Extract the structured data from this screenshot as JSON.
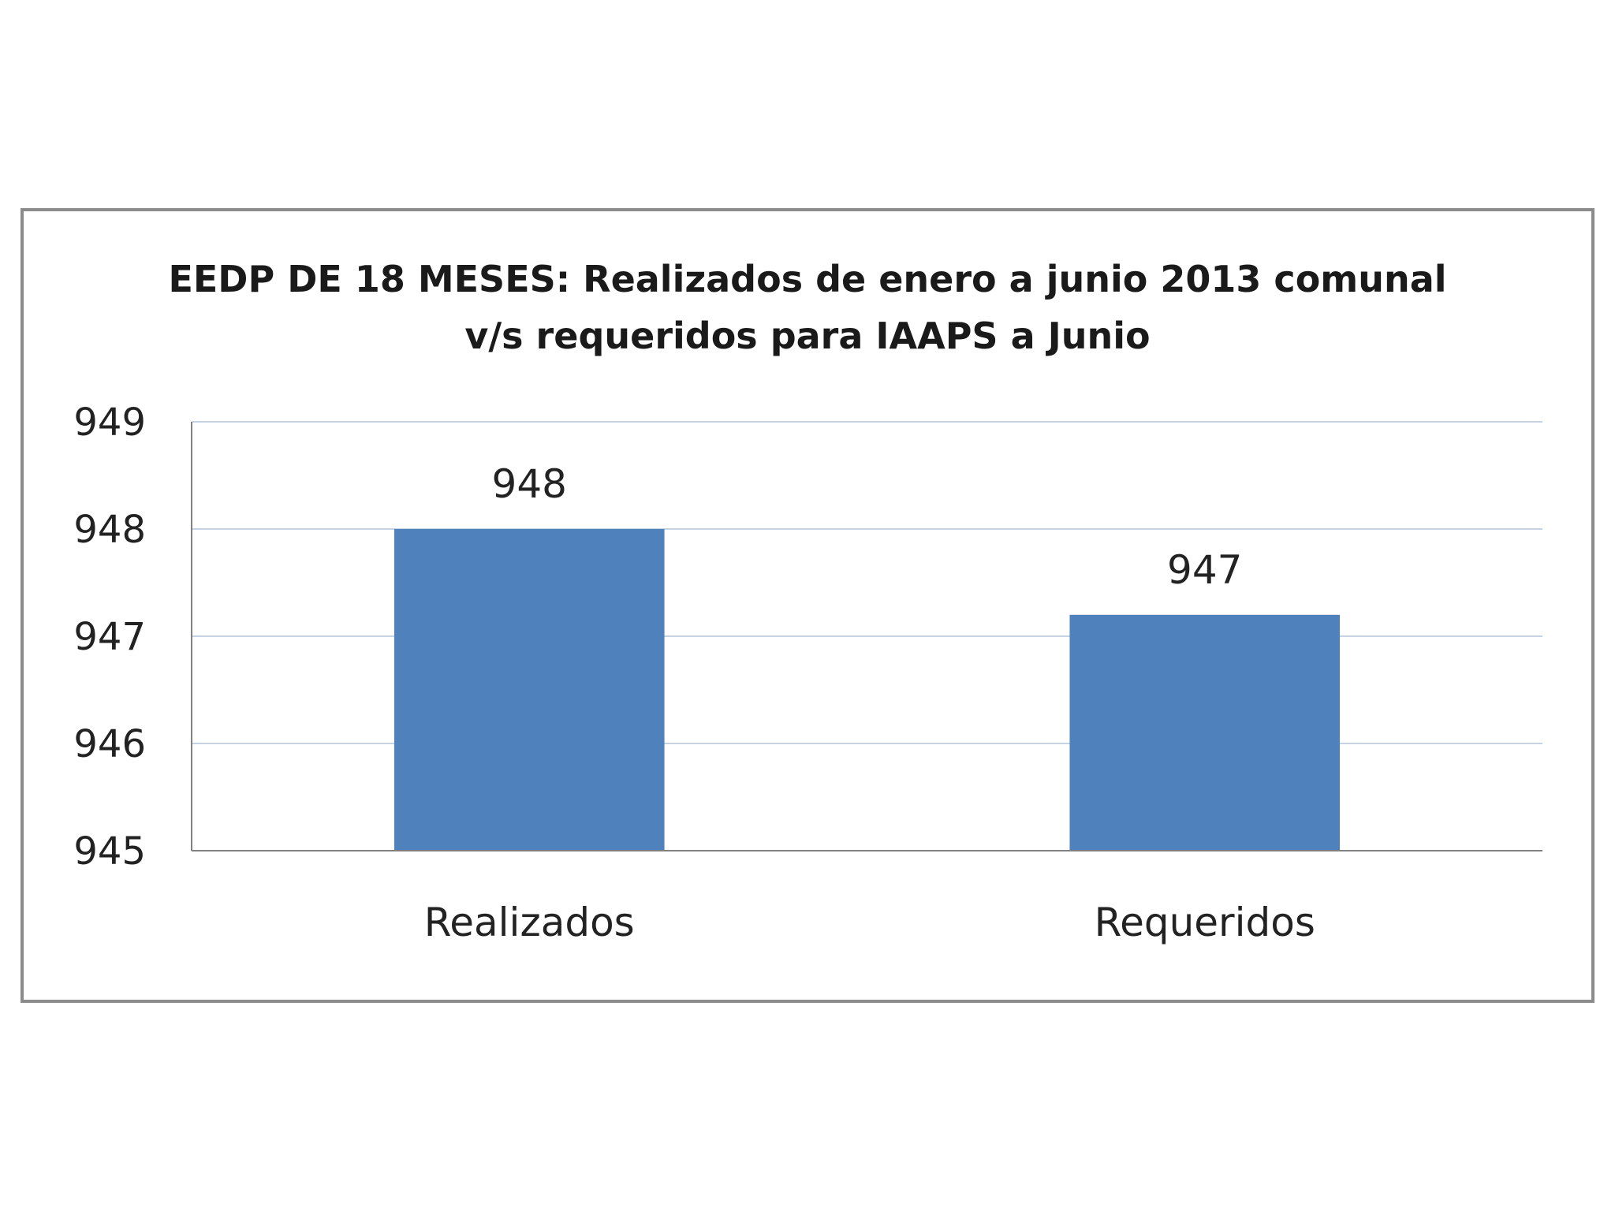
{
  "chart_data": {
    "type": "bar",
    "title_line1": "EEDP DE 18 MESES: Realizados de enero a junio 2013 comunal",
    "title_line2": "v/s requeridos para IAAPS a Junio",
    "categories": [
      "Realizados",
      "Requeridos"
    ],
    "values": [
      948,
      947.2
    ],
    "data_labels": [
      "948",
      "947"
    ],
    "ylim": [
      945,
      949
    ],
    "yticks": [
      945,
      946,
      947,
      948,
      949
    ],
    "xlabel": "",
    "ylabel": "",
    "grid": true,
    "legend": "none",
    "bar_color": "#4f81bd",
    "grid_color": "#c6d3e3",
    "axis_color": "#808080"
  }
}
